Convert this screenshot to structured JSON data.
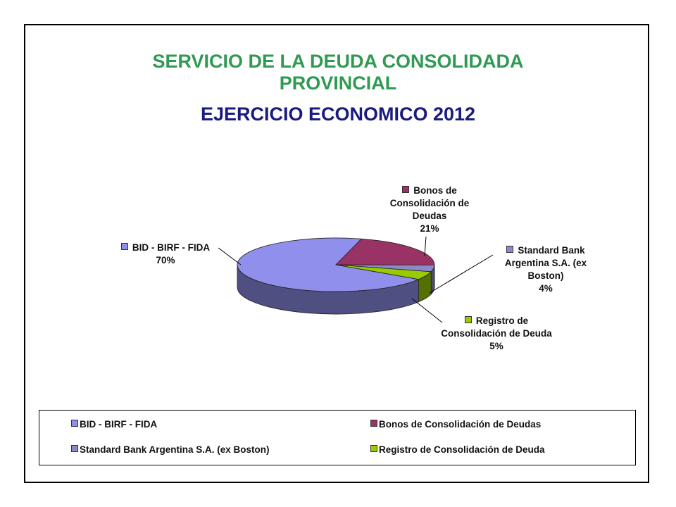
{
  "chart_data": {
    "type": "pie",
    "title": "SERVICIO DE LA DEUDA CONSOLIDADA PROVINCIAL",
    "subtitle": "EJERCICIO ECONOMICO 2012",
    "categories": [
      "BID - BIRF - FIDA",
      "Bonos de Consolidación de Deudas",
      "Standard Bank Argentina S.A. (ex Boston)",
      "Registro de Consolidación de Deuda"
    ],
    "values": [
      70,
      21,
      4,
      5
    ],
    "value_labels": [
      "70%",
      "21%",
      "4%",
      "5%"
    ],
    "colors": [
      "#9090ec",
      "#993366",
      "#8a8ac8",
      "#99cc00"
    ],
    "legend": "bottom"
  }
}
